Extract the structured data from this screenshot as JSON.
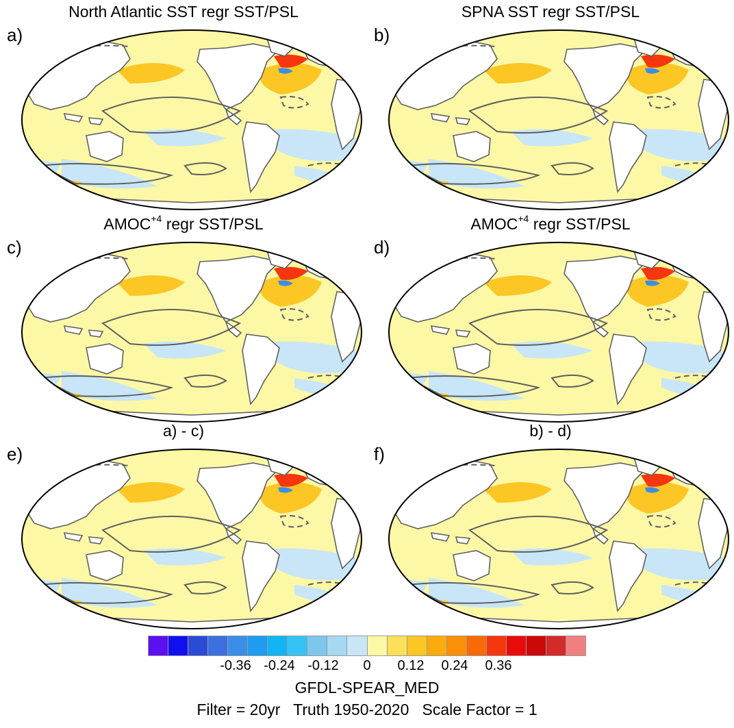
{
  "panels": [
    {
      "label": "a)",
      "title_main": "North Atlantic SST regr SST/PSL",
      "title_sup": "",
      "title_rest": ""
    },
    {
      "label": "b)",
      "title_main": "SPNA SST regr SST/PSL",
      "title_sup": "",
      "title_rest": ""
    },
    {
      "label": "c)",
      "title_main": "AMOC",
      "title_sup": "+4",
      "title_rest": " regr SST/PSL"
    },
    {
      "label": "d)",
      "title_main": "AMOC",
      "title_sup": "+4",
      "title_rest": " regr SST/PSL"
    },
    {
      "label": "e)",
      "title_main": "a) - c)",
      "title_sup": "",
      "title_rest": ""
    },
    {
      "label": "f)",
      "title_main": "b) - d)",
      "title_sup": "",
      "title_rest": ""
    }
  ],
  "colorbar": {
    "colors": [
      "#5a10f0",
      "#1010f0",
      "#2a4bd7",
      "#3c6fe0",
      "#3a8ee8",
      "#1e9cf0",
      "#12b4f4",
      "#35c2f4",
      "#7dc6ec",
      "#a6d8f2",
      "#c8e6f7",
      "#fdf8a6",
      "#fce05a",
      "#fcc624",
      "#fcab0e",
      "#fb8f08",
      "#f86a06",
      "#f5360e",
      "#ea0b0b",
      "#cc0808",
      "#d42a2a",
      "#f08080"
    ],
    "tick_labels": [
      "-0.36",
      "-0.24",
      "-0.12",
      "0",
      "0.12",
      "0.24",
      "0.36"
    ],
    "tick_values": [
      -0.36,
      -0.24,
      -0.12,
      0,
      0.12,
      0.24,
      0.36
    ],
    "range": [
      -0.6,
      0.6
    ]
  },
  "footer": {
    "model": "GFDL-SPEAR_MED",
    "info": "Filter = 20yr   Truth 1950-2020   Scale Factor = 1"
  },
  "map_style": {
    "ocean_positive": "#fdf8a6",
    "ocean_negative": "#c8e6f7",
    "warm": "#fcc624",
    "hot": "#f5360e",
    "cold": "#3a8ee8",
    "land": "#ffffff",
    "contour": "#5f5f5f"
  }
}
